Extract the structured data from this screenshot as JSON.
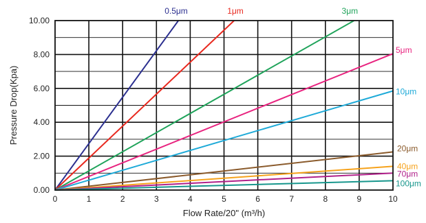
{
  "chart_data": {
    "type": "line",
    "title": "",
    "xlabel": "Flow Rate/20\" (m³/h)",
    "ylabel": "Pressure Drop(Kpa)",
    "xlim": [
      0,
      10
    ],
    "ylim": [
      0,
      10
    ],
    "x_ticks": [
      "0",
      "1",
      "2",
      "3",
      "4",
      "5",
      "6",
      "7",
      "8",
      "9",
      "10"
    ],
    "y_ticks": [
      "0.00",
      "2.00",
      "4.00",
      "6.00",
      "8.00",
      "10.00"
    ],
    "grid": true,
    "series": [
      {
        "name": "0.5μm",
        "color": "#2b2f8f",
        "x": [
          0,
          3.65
        ],
        "y": [
          0,
          10
        ]
      },
      {
        "name": "1μm",
        "color": "#e8281e",
        "x": [
          0,
          5.3
        ],
        "y": [
          0,
          10
        ]
      },
      {
        "name": "3μm",
        "color": "#1fa35a",
        "x": [
          0,
          8.85
        ],
        "y": [
          0,
          10
        ]
      },
      {
        "name": "5μm",
        "color": "#e8237f",
        "x": [
          0,
          10
        ],
        "y": [
          0,
          8.05
        ]
      },
      {
        "name": "10μm",
        "color": "#1eaad8",
        "x": [
          0,
          10
        ],
        "y": [
          0,
          5.85
        ]
      },
      {
        "name": "20μm",
        "color": "#8a5a2b",
        "x": [
          0,
          10
        ],
        "y": [
          0,
          2.25
        ]
      },
      {
        "name": "40μm",
        "color": "#f6a21b",
        "x": [
          0,
          10
        ],
        "y": [
          0,
          1.4
        ]
      },
      {
        "name": "70μm",
        "color": "#b0208a",
        "x": [
          0,
          10
        ],
        "y": [
          0,
          1.0
        ]
      },
      {
        "name": "100μm",
        "color": "#17968c",
        "x": [
          0,
          10
        ],
        "y": [
          0,
          0.55
        ]
      }
    ]
  }
}
